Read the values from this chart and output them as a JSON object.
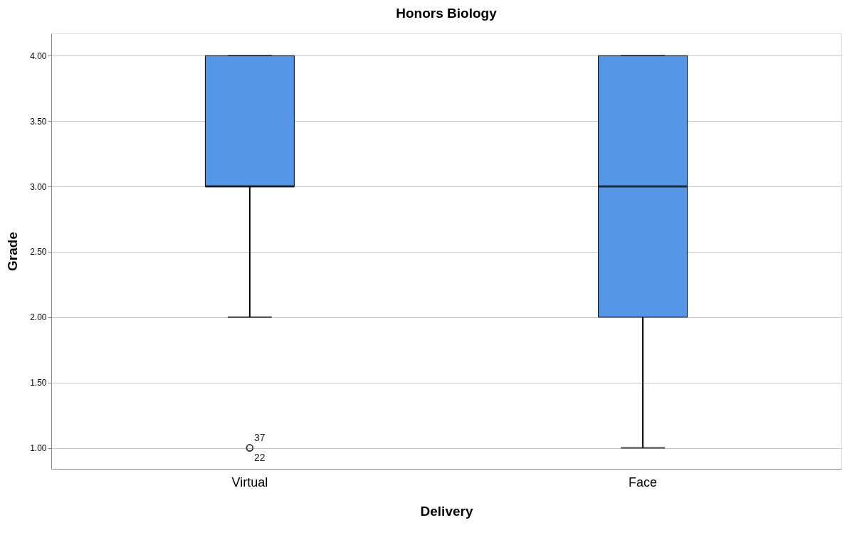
{
  "chart_data": {
    "type": "box",
    "title": "Honors Biology",
    "xlabel": "Delivery",
    "ylabel": "Grade",
    "categories": [
      "Virtual",
      "Face"
    ],
    "series": [
      {
        "color": "#5596e6",
        "boxes": [
          {
            "low": 2.0,
            "q1": 3.0,
            "median": 3.0,
            "q3": 4.0,
            "high": 4.0,
            "outliers": [
              1.0,
              1.0
            ]
          },
          {
            "low": 1.0,
            "q1": 2.0,
            "median": 3.0,
            "q3": 4.0,
            "high": 4.0
          }
        ]
      }
    ],
    "ylim": [
      0.84,
      4.17
    ],
    "yticks": [
      {
        "value": 1,
        "label": "1.00"
      },
      {
        "value": 1.5,
        "label": "1.50"
      },
      {
        "value": 2,
        "label": "2.00"
      },
      {
        "value": 2.5,
        "label": "2.50"
      },
      {
        "value": 3,
        "label": "3.00"
      },
      {
        "value": 3.5,
        "label": "3.50"
      },
      {
        "value": 4,
        "label": "4.00"
      }
    ],
    "grid": "y",
    "annotations": [
      "37",
      "22"
    ]
  }
}
